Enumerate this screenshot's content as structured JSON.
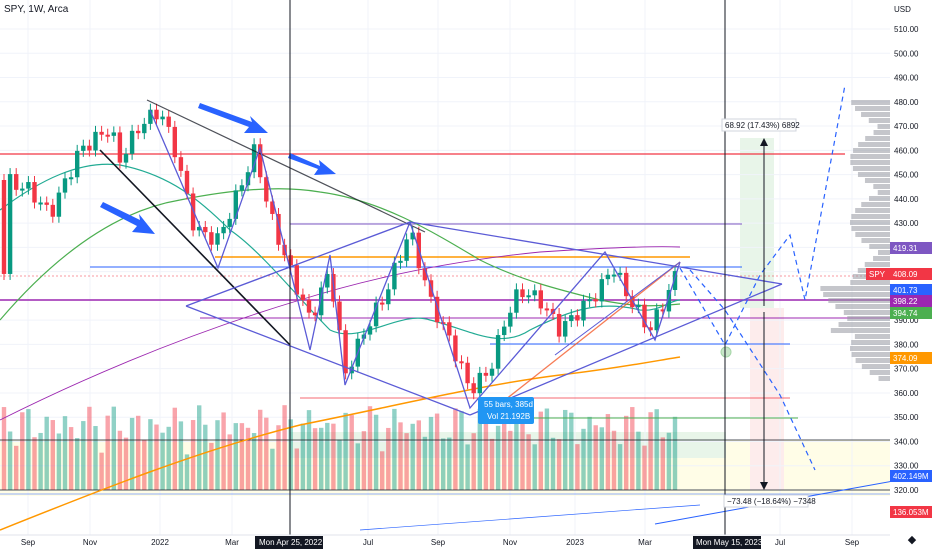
{
  "header": {
    "ticker_line": "SPY, 1W, Arca"
  },
  "axis": {
    "currency": "USD"
  },
  "chart_data": {
    "type": "candlestick",
    "title": "SPY, 1W, Arca",
    "ylim": [
      315,
      515
    ],
    "y_ticks": [
      510,
      500,
      490,
      480,
      470,
      460,
      450,
      440,
      430,
      420,
      410,
      390,
      380,
      370,
      360,
      350,
      340,
      330,
      320
    ],
    "x_ticks": [
      {
        "label": "Sep",
        "x": 28
      },
      {
        "label": "Nov",
        "x": 90
      },
      {
        "label": "2022",
        "x": 160
      },
      {
        "label": "Mar",
        "x": 232
      },
      {
        "label": "Jul",
        "x": 368
      },
      {
        "label": "Sep",
        "x": 438
      },
      {
        "label": "Nov",
        "x": 510
      },
      {
        "label": "2023",
        "x": 575
      },
      {
        "label": "Mar",
        "x": 645
      },
      {
        "label": "Jul",
        "x": 780
      },
      {
        "label": "Sep",
        "x": 852
      }
    ],
    "crosshair_dates": [
      "Mon Apr 25, 2022",
      "Mon May 15, 2023"
    ],
    "price_tags": [
      {
        "label": "SPY",
        "value": "408.09",
        "color": "#f23645"
      },
      {
        "label": "",
        "value": "419.31",
        "color": "#7e57c2"
      },
      {
        "label": "",
        "value": "401.73",
        "color": "#2962ff"
      },
      {
        "label": "",
        "value": "398.22",
        "color": "#9c27b0"
      },
      {
        "label": "",
        "value": "394.74",
        "color": "#4caf50"
      },
      {
        "label": "",
        "value": "374.09",
        "color": "#ff9800"
      },
      {
        "label": "",
        "value": "402.149M",
        "color": "#2962ff"
      },
      {
        "label": "",
        "value": "136.053M",
        "color": "#f23645"
      }
    ],
    "annotations": {
      "measure_up": "68.92 (17.43%) 6892",
      "measure_down": "−73.48 (−18.64%) −7348",
      "bars_range": "55 bars, 385d",
      "bars_volume": "Vol 21.192B"
    },
    "colors": {
      "up": "#089981",
      "down": "#f23645",
      "ma_fast": "#22ab94",
      "ma_mid": "#4caf50",
      "ma_slow": "#ff9800",
      "ma_long": "#9c27b0",
      "trend": "#2962ff"
    }
  }
}
